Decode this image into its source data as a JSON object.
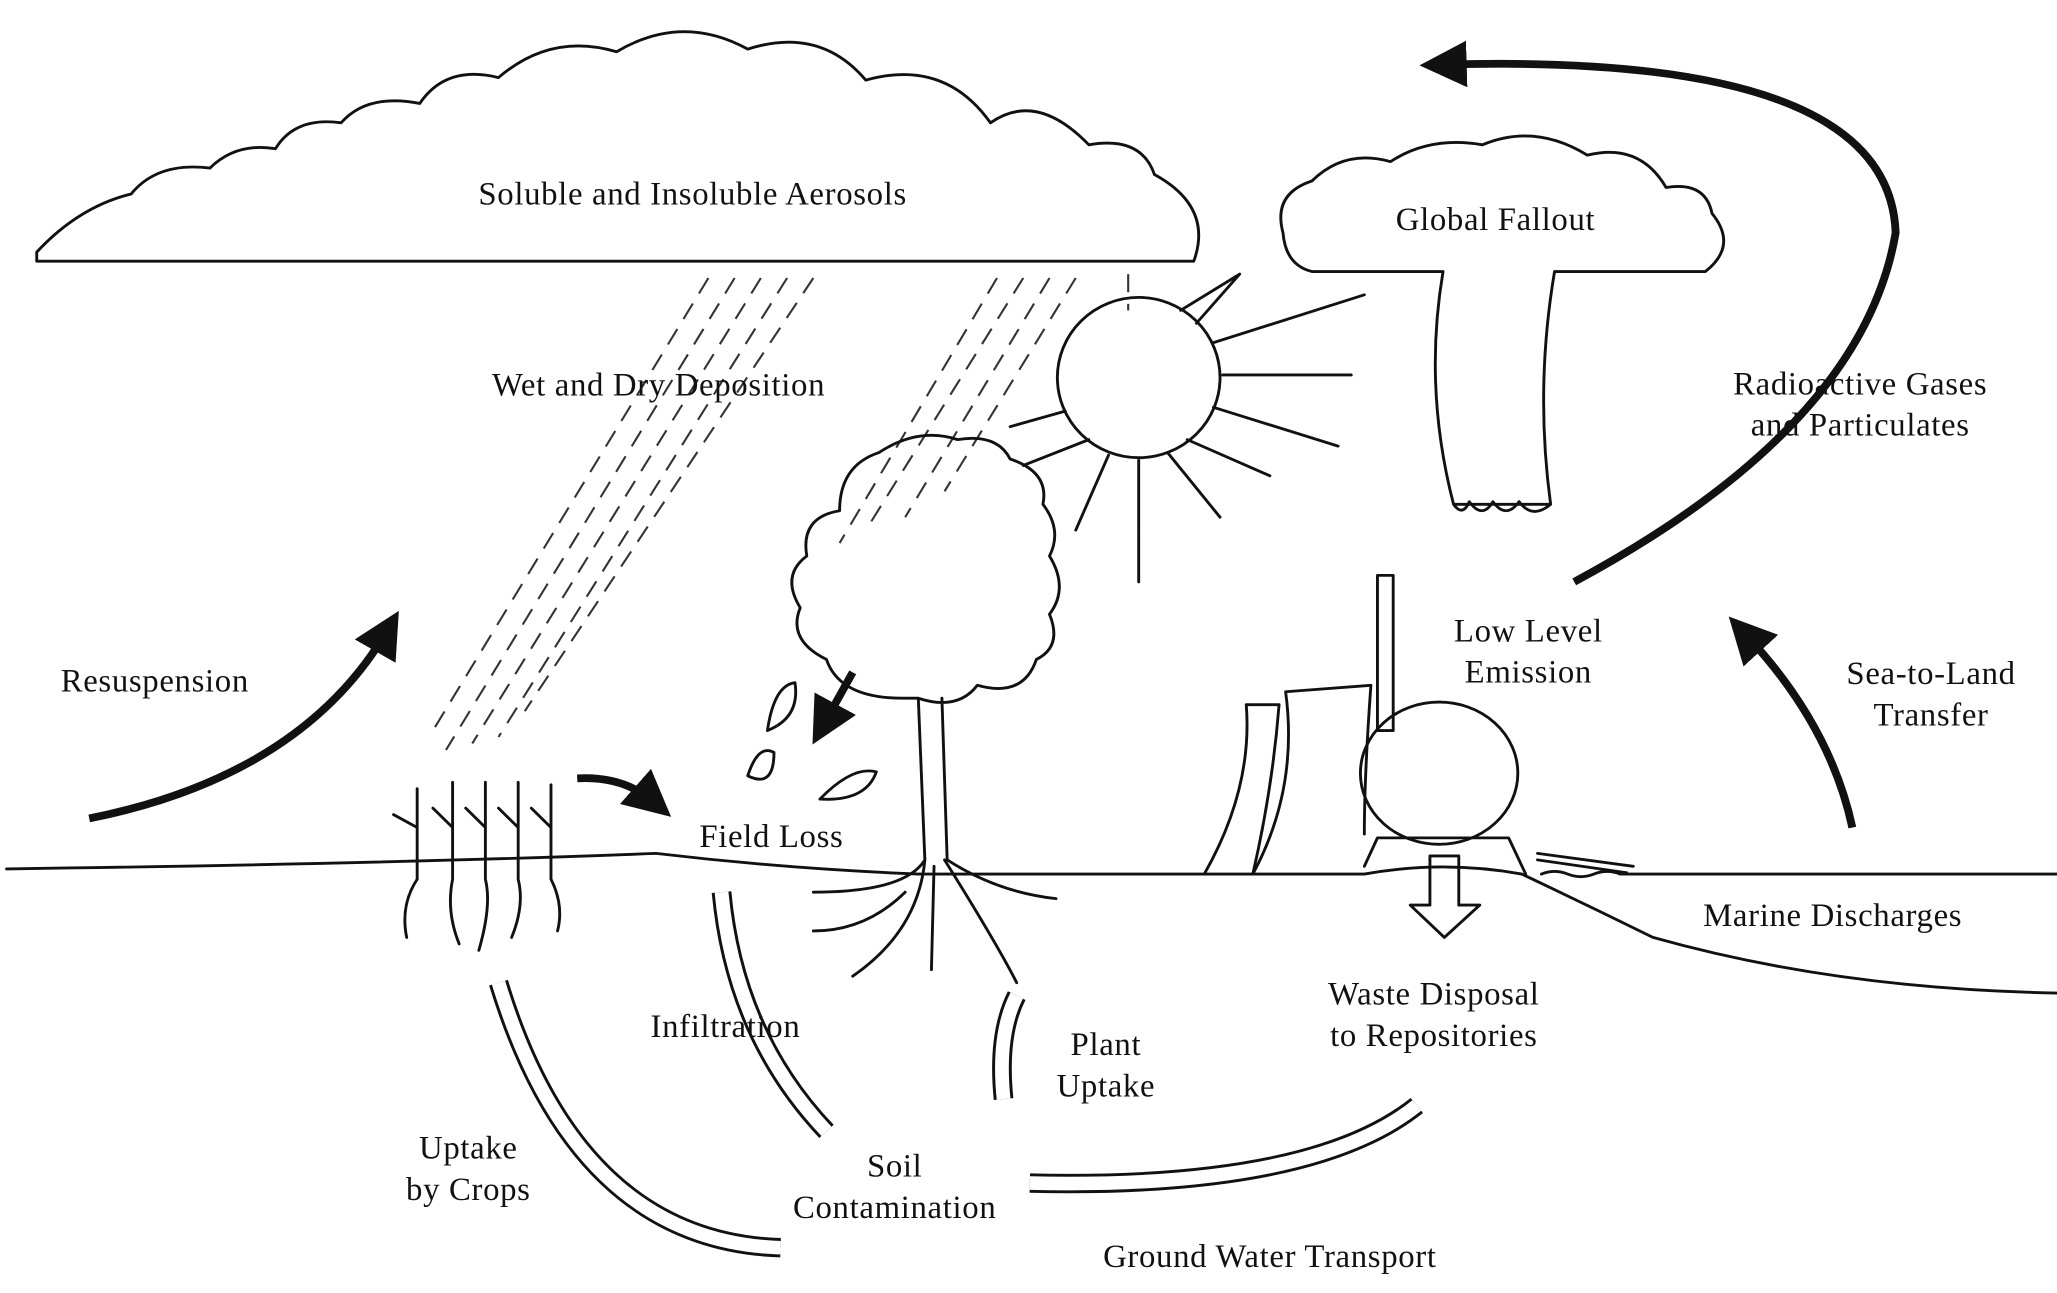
{
  "labels": [
    {
      "lines": [
        "Soluble and Insoluble Aerosols"
      ]
    },
    {
      "lines": [
        "Global Fallout"
      ]
    },
    {
      "lines": [
        "Wet and Dry Deposition"
      ]
    },
    {
      "lines": [
        "Radioactive Gases",
        "and Particulates"
      ]
    },
    {
      "lines": [
        "Low Level",
        "Emission"
      ]
    },
    {
      "lines": [
        "Resuspension"
      ]
    },
    {
      "lines": [
        "Sea-to-Land",
        "Transfer"
      ]
    },
    {
      "lines": [
        "Field Loss"
      ]
    },
    {
      "lines": [
        "Marine Discharges"
      ]
    },
    {
      "lines": [
        "Waste Disposal",
        "to Repositories"
      ]
    },
    {
      "lines": [
        "Infiltration"
      ]
    },
    {
      "lines": [
        "Plant",
        "Uptake"
      ]
    },
    {
      "lines": [
        "Uptake",
        "by Crops"
      ]
    },
    {
      "lines": [
        "Soil",
        "Contamination"
      ]
    },
    {
      "lines": [
        "Ground Water Transport"
      ]
    }
  ]
}
